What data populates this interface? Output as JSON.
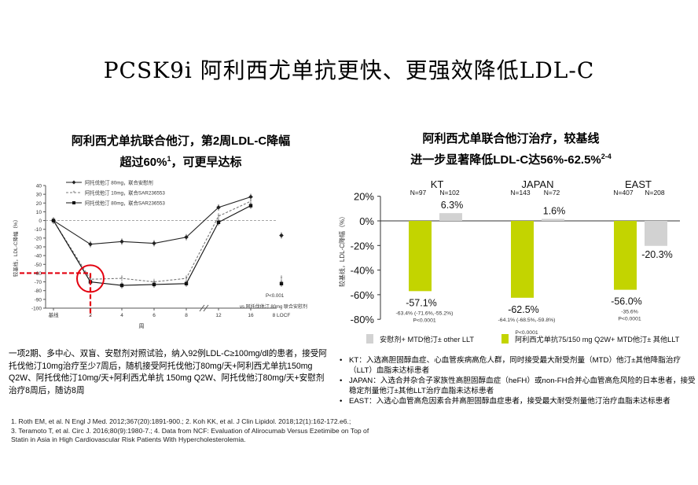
{
  "title": "PCSK9i 阿利西尤单抗更快、更强效降低LDL-C",
  "left_panel": {
    "title_line1": "阿利西尤单抗联合他汀，第2周LDL-C降幅",
    "title_line2_main": "超过60%",
    "title_line2_sup": "1",
    "title_line2_tail": "，可更早达标",
    "description": "一项2期、多中心、双盲、安慰剂对照试验，纳入92例LDL-C≥100mg/dl的患者，接受阿托伐他汀10mg治疗至少7周后，随机接受阿托伐他汀80mg/天+阿利西尤单抗150mg Q2W、阿托伐他汀10mg/天+阿利西尤单抗 150mg Q2W、阿托伐他汀80mg/天+安慰剂治疗8周后，随访8周"
  },
  "right_panel": {
    "title_line1": "阿利西尤单联合他汀治疗，较基线",
    "title_line2_main": "进一步显著降低LDL-C达56%-62.5%",
    "title_line2_sup": "2-4",
    "bullets": [
      "KT：入选高胆固醇血症、心血管疾病高危人群，同时接受最大耐受剂量（MTD）他汀±其他降脂治疗（LLT）血脂未达标患者",
      "JAPAN：入选合并杂合子家族性高胆固醇血症（heFH）或non-FH合并心血管高危风险的日本患者，接受稳定剂量他汀±其他LLT治疗血脂未达标患者",
      "EAST：入选心血管高危因素合并高胆固醇血症患者，接受最大耐受剂量他汀治疗血脂未达标患者"
    ]
  },
  "references": [
    "1. Roth EM, et al. N Engl J Med. 2012;367(20):1891-900.; 2. Koh KK, et al. J Clin Lipidol. 2018;12(1):162-172.e6.;",
    "3. Teramoto T, et al. Circ J. 2016;80(9):1980-7.; 4. Data from NCF: Evaluation of Alirocumab Versus Ezetimibe on Top of",
    "Statin in Asia in High Cardiovascular Risk Patients With Hypercholesterolemia."
  ],
  "colors": {
    "alirocumab_bar": "#c3d400",
    "control_bar": "#d2d2d2",
    "highlight": "#e3000f",
    "line": "#1a1a1a"
  },
  "chart_data": [
    {
      "type": "line",
      "ylabel": "较基线，LDL-C降幅（%）",
      "xlabel": "周",
      "ylim": [
        -100,
        40
      ],
      "yticks": [
        40,
        30,
        20,
        10,
        0,
        -10,
        -20,
        -30,
        -40,
        -50,
        -60,
        -70,
        -80,
        -90,
        -100
      ],
      "x_ticks": [
        "基线",
        "2",
        "4",
        "6",
        "8",
        "12",
        "16",
        "8 LOCF"
      ],
      "x": [
        0,
        2,
        4,
        6,
        8,
        12,
        16
      ],
      "series": [
        {
          "name": "阿托伐他汀 80mg，联合安慰剂",
          "values": [
            0,
            -27,
            -24,
            -26,
            -19,
            15,
            27
          ],
          "locf": -17
        },
        {
          "name": "阿托伐他汀 10mg，联合SAR236553",
          "values": [
            0,
            -67,
            -66,
            -70,
            -66,
            5,
            22
          ],
          "locf": -66
        },
        {
          "name": "阿托伐他汀 80mg，联合SAR236553",
          "values": [
            0,
            -70,
            -74,
            -73,
            -72,
            -2,
            17
          ],
          "locf": -72
        }
      ],
      "highlight": {
        "x": 2,
        "y": -60
      },
      "annotations": [
        "P<0.001",
        "vs 阿托伐他汀 80mg 联合安慰剂"
      ]
    },
    {
      "type": "bar",
      "categories": [
        "KT",
        "JAPAN",
        "EAST"
      ],
      "ylim": [
        -80,
        20
      ],
      "yticks": [
        "20%",
        "0%",
        "-20%",
        "-40%",
        "-60%",
        "-80%"
      ],
      "ylabel": "较基线，LDL-C降幅（%）",
      "series": [
        {
          "name": "阿利西尤单抗75/150 mg Q2W+ MTD他汀± 其他LLT",
          "values": [
            -57.1,
            -62.5,
            -56.0
          ],
          "n": [
            "N=97",
            "N=143",
            "N=407"
          ],
          "labels": [
            "-57.1%",
            "-62.5%",
            "-56.0%"
          ],
          "ci": [
            "-63.4% (-71.6%,-55.2%)",
            "-64.1% (-68.5%,-59.8%)",
            "-35.6%"
          ],
          "p": [
            "P<0.0001",
            "P<0.0001",
            "P<0.0001"
          ]
        },
        {
          "name": "安慰剂+ MTD他汀± other LLT",
          "values": [
            6.3,
            1.6,
            -20.3
          ],
          "n": [
            "N=102",
            "N=72",
            "N=208"
          ],
          "labels": [
            "6.3%",
            "1.6%",
            "-20.3%"
          ]
        }
      ]
    }
  ]
}
